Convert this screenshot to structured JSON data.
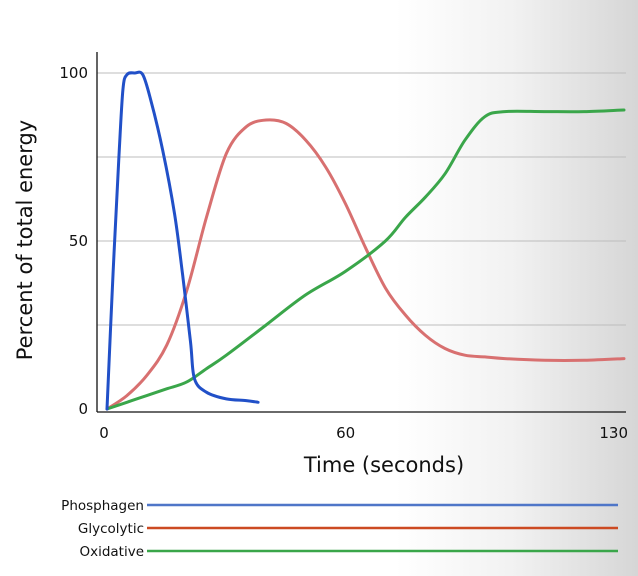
{
  "chart_data": {
    "type": "line",
    "title": "",
    "xlabel": "Time (seconds)",
    "ylabel": "Percent of total energy",
    "xlim": [
      0,
      130
    ],
    "ylim": [
      0,
      100
    ],
    "x_ticks": [
      0,
      60,
      130
    ],
    "y_ticks": [
      0,
      50,
      100
    ],
    "grid": "horizontal",
    "legend_position": "bottom",
    "series": [
      {
        "name": "Phosphagen",
        "color": "#2150c8",
        "x": [
          0,
          1.5,
          3,
          4,
          5,
          7,
          9,
          11,
          14,
          17,
          19,
          21,
          22,
          25,
          30,
          35,
          38
        ],
        "y": [
          0,
          40,
          75,
          95,
          99.5,
          100,
          99.5,
          92,
          77,
          58,
          40,
          20,
          9,
          5,
          3,
          2.5,
          2
        ]
      },
      {
        "name": "Glycolytic",
        "color": "#d87070",
        "x": [
          0,
          5,
          10,
          15,
          20,
          25,
          30,
          35,
          40,
          45,
          50,
          55,
          60,
          65,
          70,
          75,
          80,
          85,
          90,
          95,
          100,
          110,
          120,
          130
        ],
        "y": [
          0,
          4,
          10,
          19,
          35,
          57,
          76,
          84,
          86,
          85,
          80,
          72,
          61,
          48,
          36,
          28,
          22,
          18,
          16,
          15.5,
          15,
          14.5,
          14.5,
          15
        ]
      },
      {
        "name": "Oxidative",
        "color": "#3aa64a",
        "x": [
          0,
          5,
          10,
          15,
          20,
          25,
          30,
          40,
          50,
          60,
          70,
          75,
          80,
          85,
          90,
          95,
          100,
          110,
          120,
          130
        ],
        "y": [
          0,
          2,
          4,
          6,
          8,
          12,
          16,
          25,
          34,
          41,
          50,
          57,
          63,
          70,
          80,
          87,
          88.5,
          88.5,
          88.5,
          89
        ]
      }
    ],
    "legend": [
      {
        "label": "Phosphagen",
        "color": "#4f76c8"
      },
      {
        "label": "Glycolytic",
        "color": "#cc4a22"
      },
      {
        "label": "Oxidative",
        "color": "#3aa64a"
      }
    ]
  }
}
